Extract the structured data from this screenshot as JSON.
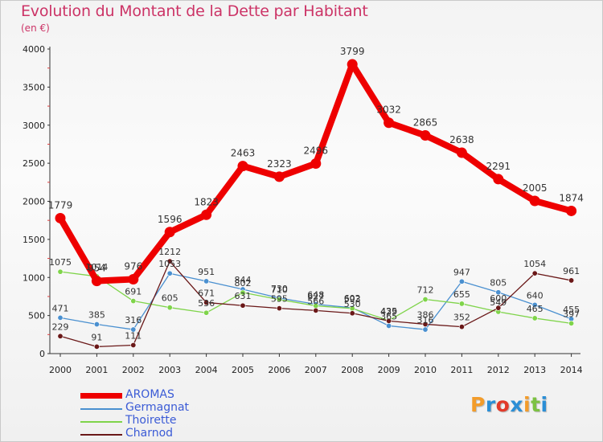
{
  "header": {
    "title": "Evolution du Montant de la Dette par Habitant",
    "unit": "(en €)"
  },
  "logo": {
    "text": "Proxiti",
    "letters": [
      {
        "ch": "P",
        "color": "#f39c2a"
      },
      {
        "ch": "r",
        "color": "#2b8fd6"
      },
      {
        "ch": "o",
        "color": "#e23a2a"
      },
      {
        "ch": "x",
        "color": "#2b8fd6"
      },
      {
        "ch": "i",
        "color": "#f39c2a"
      },
      {
        "ch": "t",
        "color": "#7cc242"
      },
      {
        "ch": "i",
        "color": "#2b8fd6"
      }
    ]
  },
  "colors": {
    "title": "#cc3366",
    "axis": "#333333",
    "grid": "#dddddd"
  },
  "chart_data": {
    "type": "line",
    "title": "Evolution du Montant de la Dette par Habitant",
    "subtitle": "(en €)",
    "xlabel": "",
    "ylabel": "",
    "ylim": [
      0,
      4000
    ],
    "yticks": [
      "0",
      "500",
      "1000",
      "1500",
      "2000",
      "2500",
      "3000",
      "3500",
      "4000"
    ],
    "categories": [
      "2000",
      "2001",
      "2002",
      "2003",
      "2004",
      "2005",
      "2006",
      "2007",
      "2008",
      "2009",
      "2010",
      "2011",
      "2012",
      "2013",
      "2014"
    ],
    "grid": false,
    "legend_position": "bottom-left",
    "series": [
      {
        "name": "AROMAS",
        "color": "#ee0000",
        "values": [
          1779,
          954,
          976,
          1596,
          1823,
          2463,
          2323,
          2496,
          3799,
          3032,
          2865,
          2638,
          2291,
          2005,
          1874
        ]
      },
      {
        "name": "Germagnat",
        "color": "#4a90d0",
        "values": [
          471,
          385,
          316,
          1053,
          951,
          844,
          730,
          648,
          602,
          365,
          316,
          947,
          805,
          640,
          455
        ]
      },
      {
        "name": "Thoirette",
        "color": "#7fd44a",
        "values": [
          1075,
          1014,
          691,
          605,
          536,
          802,
          710,
          627,
          593,
          435,
          712,
          655,
          549,
          465,
          397
        ]
      },
      {
        "name": "Charnod",
        "color": "#6a1818",
        "values": [
          229,
          91,
          111,
          1212,
          671,
          631,
          595,
          566,
          530,
          429,
          386,
          352,
          600,
          1054,
          961
        ]
      }
    ]
  }
}
